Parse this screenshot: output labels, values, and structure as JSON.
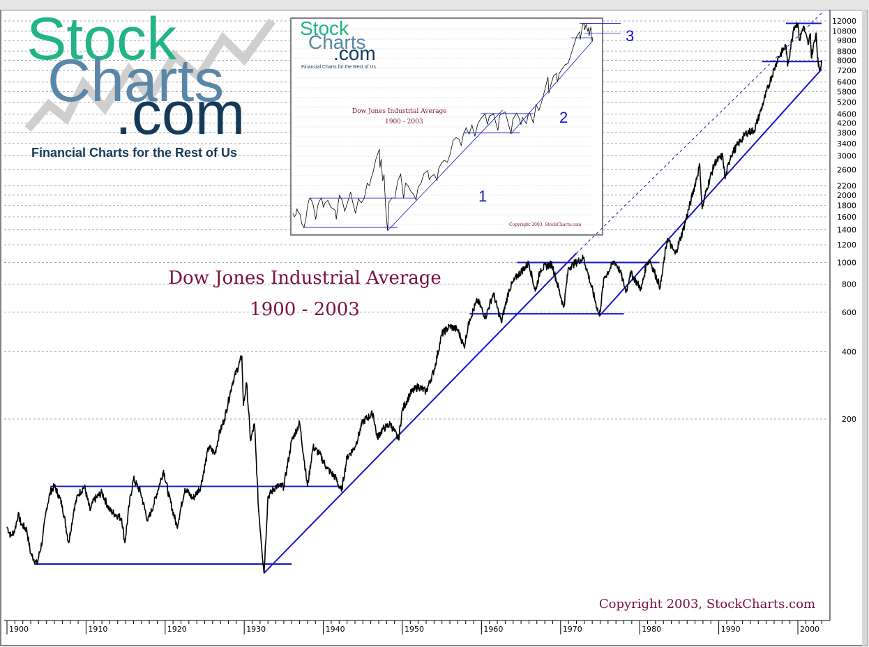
{
  "logo": {
    "line1": "Stock",
    "line2": "Charts",
    "line3": ".com",
    "tagline": "Financial Charts for the Rest of Us"
  },
  "inset": {
    "logo_line1": "Stock",
    "logo_line2": "Charts",
    "logo_line3": ".com",
    "tagline": "Financial Charts for the Rest of Us",
    "title_line1": "Dow Jones Industrial Average",
    "title_line2": "1900 - 2003",
    "copyright": "Copyright 2003, StockCharts.com",
    "marker1": "1",
    "marker2": "2",
    "marker3": "3"
  },
  "colors": {
    "price": "#000000",
    "trendline": "#1414c8",
    "title": "#7a1040",
    "logo_green": "#20b487",
    "logo_blue": "#5a86a8",
    "logo_navy": "#143a5a"
  },
  "chart_data": {
    "type": "line",
    "title": "Dow Jones Industrial Average",
    "subtitle": "1900 - 2003",
    "copyright": "Copyright 2003, StockCharts.com",
    "xlabel": "",
    "ylabel": "",
    "yscale": "log",
    "xlim": [
      1900,
      2003
    ],
    "ylim": [
      38,
      13000
    ],
    "grid": true,
    "y_ticks": [
      12000,
      10800,
      9800,
      8800,
      8000,
      7200,
      6400,
      5800,
      5200,
      4600,
      4200,
      3800,
      3400,
      3000,
      2600,
      2200,
      2000,
      1800,
      1600,
      1400,
      1200,
      1000,
      800,
      600,
      400,
      200
    ],
    "x_ticks": [
      1900,
      1910,
      1920,
      1930,
      1940,
      1950,
      1960,
      1970,
      1980,
      1990,
      2000
    ],
    "series": [
      {
        "values_xy": [
          [
            1900,
            66
          ],
          [
            1900.5,
            60
          ],
          [
            1901,
            64
          ],
          [
            1901.4,
            75
          ],
          [
            1901.8,
            68
          ],
          [
            1902.5,
            64
          ],
          [
            1903,
            50
          ],
          [
            1903.8,
            45
          ],
          [
            1904.5,
            58
          ],
          [
            1905,
            80
          ],
          [
            1905.5,
            95
          ],
          [
            1906,
            100
          ],
          [
            1906.5,
            92
          ],
          [
            1907,
            82
          ],
          [
            1907.8,
            56
          ],
          [
            1908.5,
            80
          ],
          [
            1909,
            92
          ],
          [
            1909.8,
            100
          ],
          [
            1910.5,
            78
          ],
          [
            1911,
            87
          ],
          [
            1912,
            94
          ],
          [
            1913,
            78
          ],
          [
            1914.5,
            72
          ],
          [
            1914.9,
            56
          ],
          [
            1915.5,
            85
          ],
          [
            1916,
            108
          ],
          [
            1916.9,
            94
          ],
          [
            1917.8,
            70
          ],
          [
            1918.5,
            82
          ],
          [
            1919.8,
            118
          ],
          [
            1920.5,
            90
          ],
          [
            1921.5,
            66
          ],
          [
            1922.5,
            98
          ],
          [
            1923.5,
            88
          ],
          [
            1924.5,
            100
          ],
          [
            1925.5,
            150
          ],
          [
            1926.3,
            140
          ],
          [
            1926.8,
            170
          ],
          [
            1927.5,
            200
          ],
          [
            1928.5,
            290
          ],
          [
            1929.7,
            381
          ],
          [
            1929.9,
            230
          ],
          [
            1930.3,
            290
          ],
          [
            1930.8,
            160
          ],
          [
            1931.3,
            190
          ],
          [
            1931.8,
            80
          ],
          [
            1932.5,
            41
          ],
          [
            1933,
            90
          ],
          [
            1934,
            100
          ],
          [
            1935,
            100
          ],
          [
            1936,
            160
          ],
          [
            1937,
            192
          ],
          [
            1938,
            100
          ],
          [
            1938.7,
            150
          ],
          [
            1939.5,
            140
          ],
          [
            1940.5,
            120
          ],
          [
            1941.5,
            110
          ],
          [
            1942.3,
            95
          ],
          [
            1943,
            135
          ],
          [
            1944,
            150
          ],
          [
            1945,
            195
          ],
          [
            1946.3,
            212
          ],
          [
            1946.8,
            165
          ],
          [
            1947.5,
            180
          ],
          [
            1948.5,
            190
          ],
          [
            1949.5,
            162
          ],
          [
            1950,
            220
          ],
          [
            1951,
            260
          ],
          [
            1952,
            280
          ],
          [
            1953,
            265
          ],
          [
            1954,
            330
          ],
          [
            1955,
            480
          ],
          [
            1956,
            520
          ],
          [
            1957,
            500
          ],
          [
            1957.8,
            420
          ],
          [
            1958.5,
            560
          ],
          [
            1959.5,
            680
          ],
          [
            1960.5,
            570
          ],
          [
            1961.5,
            730
          ],
          [
            1962.5,
            540
          ],
          [
            1963.5,
            760
          ],
          [
            1964.5,
            870
          ],
          [
            1966,
            995
          ],
          [
            1966.8,
            745
          ],
          [
            1967.5,
            940
          ],
          [
            1968.9,
            985
          ],
          [
            1970.4,
            631
          ],
          [
            1971,
            950
          ],
          [
            1972.9,
            1050
          ],
          [
            1973.5,
            880
          ],
          [
            1974.9,
            577
          ],
          [
            1975.5,
            850
          ],
          [
            1976.8,
            1015
          ],
          [
            1977.5,
            920
          ],
          [
            1978.3,
            740
          ],
          [
            1978.8,
            900
          ],
          [
            1979.5,
            830
          ],
          [
            1980.2,
            760
          ],
          [
            1980.9,
            1000
          ],
          [
            1981.3,
            1020
          ],
          [
            1982.6,
            776
          ],
          [
            1983.5,
            1280
          ],
          [
            1984.5,
            1090
          ],
          [
            1985.5,
            1400
          ],
          [
            1986.5,
            1900
          ],
          [
            1987.6,
            2720
          ],
          [
            1987.9,
            1738
          ],
          [
            1988.5,
            2150
          ],
          [
            1989.5,
            2790
          ],
          [
            1990.5,
            2999
          ],
          [
            1990.8,
            2365
          ],
          [
            1991.5,
            3000
          ],
          [
            1992.5,
            3400
          ],
          [
            1993.5,
            3800
          ],
          [
            1994.5,
            3900
          ],
          [
            1995.5,
            5000
          ],
          [
            1996.5,
            6500
          ],
          [
            1997.5,
            8200
          ],
          [
            1998.5,
            9300
          ],
          [
            1998.7,
            7539
          ],
          [
            1999.5,
            11300
          ],
          [
            2000,
            11723
          ],
          [
            2000.2,
            9800
          ],
          [
            2000.7,
            11400
          ],
          [
            2001.3,
            9400
          ],
          [
            2001.6,
            10500
          ],
          [
            2001.7,
            8235
          ],
          [
            2002.3,
            10600
          ],
          [
            2002.6,
            7500
          ],
          [
            2002.8,
            7286
          ],
          [
            2003,
            8000
          ]
        ]
      }
    ],
    "trendlines": [
      {
        "x": [
          1903.5,
          1936
        ],
        "y": [
          45,
          45
        ]
      },
      {
        "x": [
          1905.5,
          1942
        ],
        "y": [
          100,
          100
        ]
      },
      {
        "x": [
          1932.5,
          1972
        ],
        "y": [
          41,
          1100
        ]
      },
      {
        "x": [
          1958.5,
          1978
        ],
        "y": [
          590,
          590
        ]
      },
      {
        "x": [
          1964.5,
          1982.5
        ],
        "y": [
          1000,
          1000
        ]
      },
      {
        "x": [
          1974.9,
          2003
        ],
        "y": [
          577,
          7300
        ]
      },
      {
        "x": [
          1995.5,
          2003
        ],
        "y": [
          7900,
          7900
        ]
      },
      {
        "x": [
          1998.5,
          2003
        ],
        "y": [
          11700,
          11700
        ]
      }
    ],
    "dashed_extension": {
      "x": [
        1972,
        2003
      ],
      "y": [
        1100,
        13000
      ]
    }
  }
}
